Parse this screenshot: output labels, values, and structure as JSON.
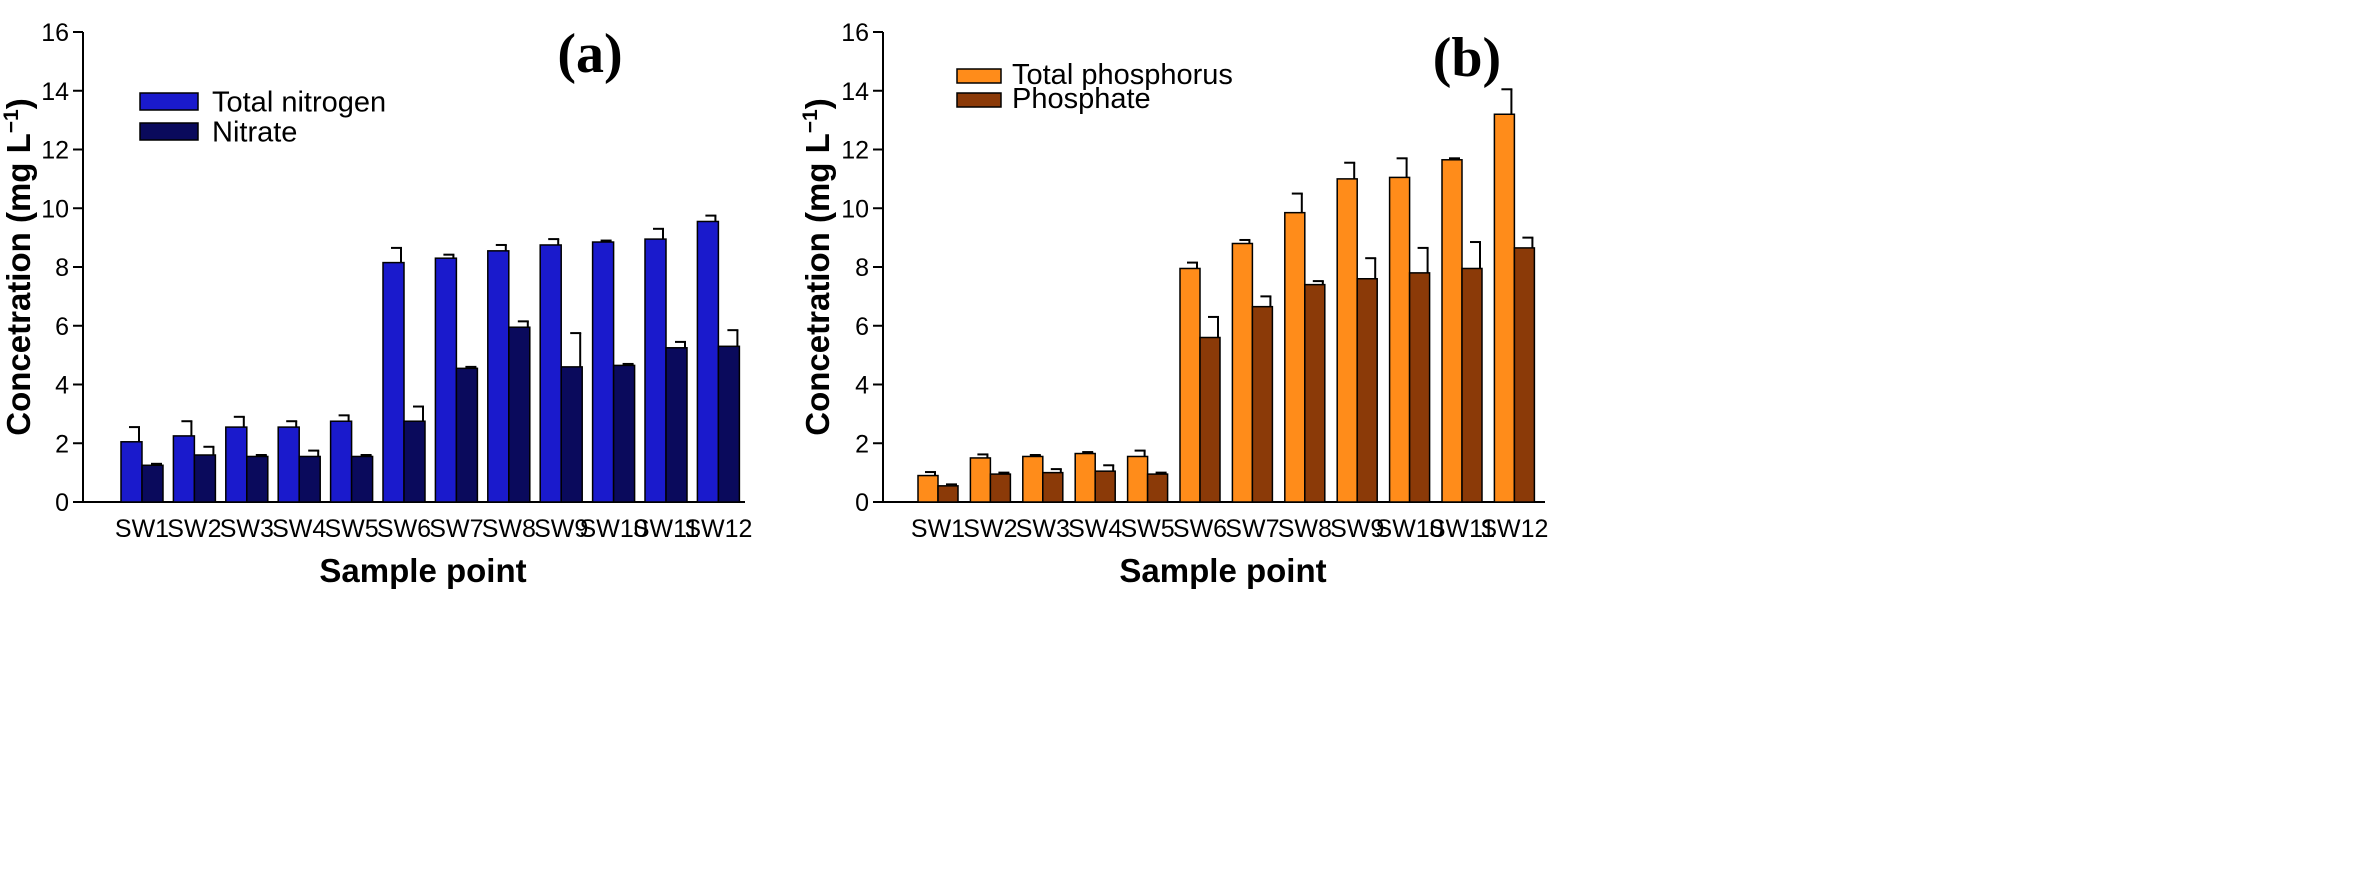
{
  "chart_data": [
    {
      "type": "bar",
      "panel_label": "(a)",
      "xlabel": "Sample point",
      "ylabel": "Concetration (mg L",
      "ylabel_sup": "−1",
      "ylabel_close": ")",
      "ylim": [
        0,
        16
      ],
      "yticks": [
        "0",
        "2",
        "4",
        "6",
        "8",
        "10",
        "12",
        "14",
        "16"
      ],
      "categories": [
        "SW1",
        "SW2",
        "SW3",
        "SW4",
        "SW5",
        "SW6",
        "SW7",
        "SW8",
        "SW9",
        "SW10",
        "SW11",
        "SW12"
      ],
      "legend_position": "top-left",
      "series": [
        {
          "name": "Total nitrogen",
          "color": "#1a1acc",
          "values": [
            2.05,
            2.25,
            2.55,
            2.55,
            2.75,
            8.15,
            8.3,
            8.55,
            8.75,
            8.85,
            8.95,
            9.55
          ],
          "errors": [
            0.5,
            0.5,
            0.35,
            0.2,
            0.2,
            0.5,
            0.12,
            0.2,
            0.2,
            0.05,
            0.35,
            0.2
          ]
        },
        {
          "name": "Nitrate",
          "color": "#0a0a5c",
          "values": [
            1.25,
            1.6,
            1.55,
            1.55,
            1.55,
            2.75,
            4.55,
            5.95,
            4.6,
            4.65,
            5.25,
            5.3
          ],
          "errors": [
            0.05,
            0.28,
            0.05,
            0.2,
            0.05,
            0.5,
            0.05,
            0.2,
            1.15,
            0.05,
            0.2,
            0.55
          ]
        }
      ]
    },
    {
      "type": "bar",
      "panel_label": "(b)",
      "xlabel": "Sample point",
      "ylabel": "Concetration (mg L",
      "ylabel_sup": "−1",
      "ylabel_close": ")",
      "ylim": [
        0,
        16
      ],
      "yticks": [
        "0",
        "2",
        "4",
        "6",
        "8",
        "10",
        "12",
        "14",
        "16"
      ],
      "categories": [
        "SW1",
        "SW2",
        "SW3",
        "SW4",
        "SW5",
        "SW6",
        "SW7",
        "SW8",
        "SW9",
        "SW10",
        "SW11",
        "SW12"
      ],
      "legend_position": "top-left",
      "series": [
        {
          "name": "Total phosphorus",
          "color": "#ff8c1a",
          "values": [
            0.9,
            1.5,
            1.55,
            1.65,
            1.55,
            7.95,
            8.8,
            9.85,
            11.0,
            11.05,
            11.65,
            13.2
          ],
          "errors": [
            0.12,
            0.12,
            0.05,
            0.05,
            0.2,
            0.2,
            0.12,
            0.65,
            0.55,
            0.65,
            0.05,
            0.85
          ]
        },
        {
          "name": "Phosphate",
          "color": "#8b3a08",
          "values": [
            0.55,
            0.95,
            1.0,
            1.05,
            0.95,
            5.6,
            6.65,
            7.4,
            7.6,
            7.8,
            7.95,
            8.65
          ],
          "errors": [
            0.05,
            0.05,
            0.12,
            0.2,
            0.05,
            0.7,
            0.35,
            0.12,
            0.7,
            0.85,
            0.9,
            0.35
          ]
        }
      ]
    }
  ]
}
